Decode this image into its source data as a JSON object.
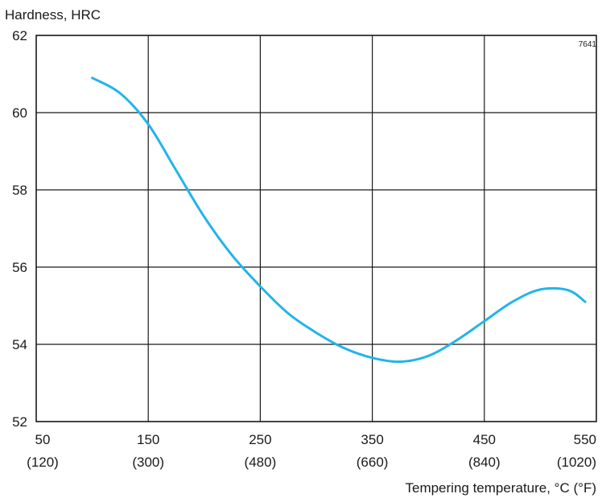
{
  "chart_data": {
    "type": "line",
    "title": "",
    "ylabel": "Hardness, HRC",
    "xlabel": "Tempering temperature, °C (°F)",
    "figure_id": "7641",
    "xlim": [
      50,
      550
    ],
    "ylim": [
      52,
      62
    ],
    "grid": true,
    "x_ticks": [
      {
        "value": 50,
        "label": "50",
        "sublabel": "(120)"
      },
      {
        "value": 150,
        "label": "150",
        "sublabel": "(300)"
      },
      {
        "value": 250,
        "label": "250",
        "sublabel": "(480)"
      },
      {
        "value": 350,
        "label": "350",
        "sublabel": "(660)"
      },
      {
        "value": 450,
        "label": "450",
        "sublabel": "(840)"
      },
      {
        "value": 550,
        "label": "550",
        "sublabel": "(1020)"
      }
    ],
    "y_ticks": [
      {
        "value": 52,
        "label": "52"
      },
      {
        "value": 54,
        "label": "54"
      },
      {
        "value": 56,
        "label": "56"
      },
      {
        "value": 58,
        "label": "58"
      },
      {
        "value": 60,
        "label": "60"
      },
      {
        "value": 62,
        "label": "62"
      }
    ],
    "series": [
      {
        "color": "#22b4ea",
        "x": [
          100,
          125,
          150,
          175,
          200,
          225,
          250,
          275,
          300,
          325,
          350,
          375,
          400,
          425,
          450,
          475,
          500,
          525,
          540
        ],
        "y": [
          60.9,
          60.5,
          59.7,
          58.5,
          57.3,
          56.3,
          55.5,
          54.8,
          54.3,
          53.9,
          53.65,
          53.55,
          53.7,
          54.1,
          54.6,
          55.1,
          55.42,
          55.4,
          55.1
        ]
      }
    ]
  }
}
